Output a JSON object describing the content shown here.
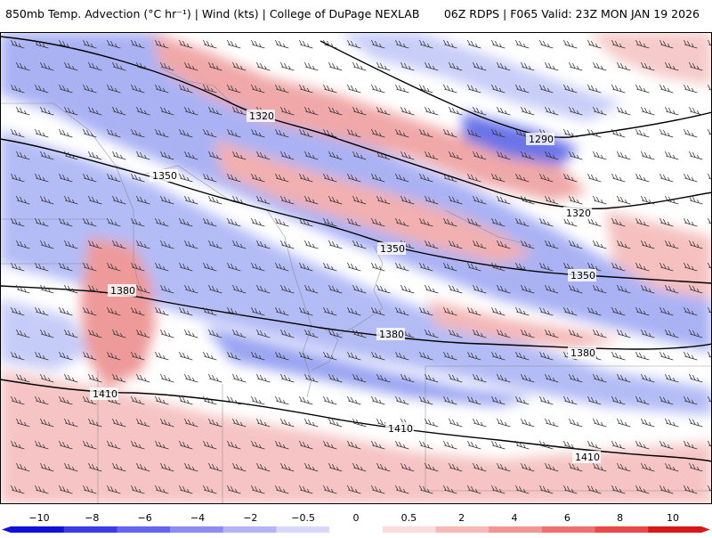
{
  "header": {
    "title_left": "850mb Temp. Advection (°C hr⁻¹) | Wind (kts) | College of DuPage NEXLAB",
    "title_right": "06Z RDPS | F065 Valid: 23Z MON JAN 19 2026"
  },
  "contours": {
    "labels": [
      "1290",
      "1320",
      "1320",
      "1350",
      "1350",
      "1350",
      "1380",
      "1380",
      "1380",
      "1410",
      "1410",
      "1410"
    ]
  },
  "colorbar": {
    "ticks": [
      "−10",
      "−8",
      "−6",
      "−4",
      "−2",
      "−0.5",
      "0",
      "0.5",
      "2",
      "4",
      "6",
      "8",
      "10"
    ],
    "colors": [
      "#1010d8",
      "#3c3ce6",
      "#6464f0",
      "#8c8cf4",
      "#b4b4f8",
      "#d8d8fc",
      "#ffffff",
      "#fcdcdc",
      "#f8b8b8",
      "#f49494",
      "#f07070",
      "#e84848",
      "#d81818"
    ]
  },
  "colors": {
    "cold_strong": "#6a74e8",
    "cold_mid": "#9aa4f2",
    "cold_light": "#c6ccf8",
    "warm_light": "#f8d0d0",
    "warm_mid": "#f2a8a8",
    "warm_strong": "#e88080",
    "lines": "#000000"
  }
}
